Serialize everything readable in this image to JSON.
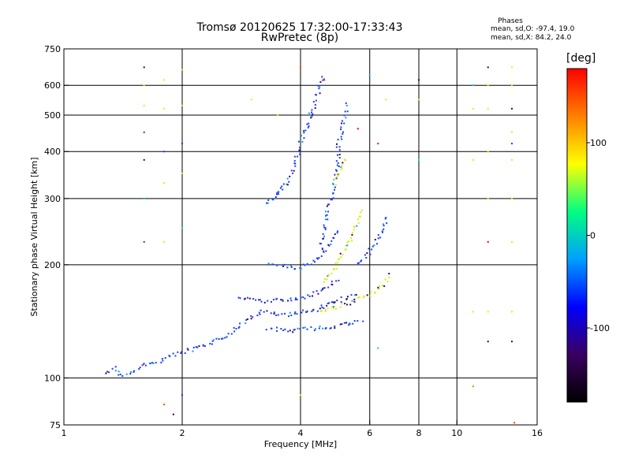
{
  "chart_data": {
    "type": "scatter",
    "title": "Tromsø 20120625 17:32:00-17:33:43",
    "subtitle": "RwPretec (8p)",
    "xlabel": "Frequency [MHz]",
    "ylabel": "Stationary phase Virtual Height [km]",
    "x_scale": "log",
    "y_scale": "log",
    "xlim": [
      1,
      16
    ],
    "ylim": [
      75,
      750
    ],
    "x_ticks": [
      "1",
      "2",
      "4",
      "6",
      "8",
      "10",
      "16"
    ],
    "x_tick_values": [
      1,
      2,
      4,
      6,
      8,
      10,
      16
    ],
    "y_ticks": [
      "75",
      "100",
      "200",
      "300",
      "400",
      "500",
      "600",
      "750"
    ],
    "y_tick_values": [
      75,
      100,
      200,
      300,
      400,
      500,
      600,
      750
    ],
    "grid": true,
    "legend": {
      "heading": "Phases",
      "o_stats": "mean, sd,O: -97.4, 19.0",
      "x_stats": "mean, sd,X:  84.2, 24.0"
    },
    "colorbar": {
      "label": "[deg]",
      "ticks": [
        "100",
        "0",
        "-100"
      ],
      "tick_values": [
        100,
        0,
        -100
      ],
      "range": [
        -180,
        180
      ],
      "colors": [
        "#000000",
        "#3a0060",
        "#0000ff",
        "#00a0ff",
        "#00ff80",
        "#ffff00",
        "#ff8000",
        "#ff0000"
      ]
    },
    "traces": [
      {
        "name": "",
        "phase": -100,
        "color": "#1a3cff",
        "points": [
          [
            1.28,
            103
          ],
          [
            1.35,
            106
          ],
          [
            1.42,
            101
          ],
          [
            1.5,
            104
          ],
          [
            1.6,
            108
          ],
          [
            1.7,
            110
          ],
          [
            1.8,
            112
          ],
          [
            1.9,
            115
          ],
          [
            2.0,
            117
          ],
          [
            2.2,
            120
          ],
          [
            2.4,
            124
          ],
          [
            2.6,
            130
          ],
          [
            2.8,
            138
          ],
          [
            3.0,
            145
          ],
          [
            3.2,
            150
          ],
          [
            3.4,
            148
          ],
          [
            3.6,
            147
          ],
          [
            3.8,
            148
          ],
          [
            4.0,
            150
          ],
          [
            4.2,
            150
          ],
          [
            4.4,
            152
          ],
          [
            4.6,
            155
          ],
          [
            4.8,
            158
          ],
          [
            5.0,
            160
          ],
          [
            5.3,
            165
          ],
          [
            5.6,
            168
          ]
        ]
      },
      {
        "name": "",
        "phase": -100,
        "color": "#1a3cff",
        "points": [
          [
            2.8,
            162
          ],
          [
            3.0,
            162
          ],
          [
            3.2,
            160
          ],
          [
            3.4,
            160
          ],
          [
            3.6,
            161
          ],
          [
            3.8,
            162
          ],
          [
            4.0,
            163
          ],
          [
            4.2,
            165
          ],
          [
            4.4,
            168
          ],
          [
            4.6,
            172
          ],
          [
            4.8,
            178
          ],
          [
            5.0,
            185
          ]
        ]
      },
      {
        "name": "",
        "phase": -100,
        "color": "#1a3cff",
        "points": [
          [
            3.3,
            135
          ],
          [
            3.6,
            134
          ],
          [
            3.9,
            134
          ],
          [
            4.2,
            135
          ],
          [
            4.6,
            136
          ],
          [
            5.0,
            138
          ],
          [
            5.4,
            140
          ],
          [
            5.8,
            142
          ]
        ]
      },
      {
        "name": "",
        "phase": -100,
        "color": "#1a3cff",
        "points": [
          [
            3.3,
            200
          ],
          [
            3.6,
            198
          ],
          [
            3.9,
            196
          ],
          [
            4.2,
            200
          ],
          [
            4.5,
            210
          ],
          [
            4.8,
            230
          ],
          [
            5.0,
            250
          ]
        ]
      },
      {
        "name": "",
        "phase": -100,
        "color": "#1a3cff",
        "points": [
          [
            3.3,
            290
          ],
          [
            3.4,
            300
          ],
          [
            3.5,
            310
          ],
          [
            3.6,
            320
          ],
          [
            3.7,
            330
          ],
          [
            3.8,
            350
          ],
          [
            3.9,
            380
          ],
          [
            4.0,
            420
          ],
          [
            4.1,
            450
          ],
          [
            4.2,
            480
          ],
          [
            4.3,
            520
          ],
          [
            4.4,
            560
          ],
          [
            4.5,
            600
          ],
          [
            4.6,
            640
          ]
        ]
      },
      {
        "name": "",
        "phase": -100,
        "color": "#1a3cff",
        "points": [
          [
            4.5,
            220
          ],
          [
            4.6,
            250
          ],
          [
            4.7,
            280
          ],
          [
            4.8,
            300
          ],
          [
            4.9,
            330
          ],
          [
            5.0,
            380
          ],
          [
            5.0,
            420
          ],
          [
            5.1,
            460
          ],
          [
            5.2,
            500
          ],
          [
            5.3,
            540
          ]
        ]
      },
      {
        "name": "",
        "phase": 100,
        "color": "#d8f000",
        "points": [
          [
            4.5,
            150
          ],
          [
            4.8,
            152
          ],
          [
            5.0,
            155
          ],
          [
            5.3,
            158
          ],
          [
            5.6,
            162
          ],
          [
            6.0,
            166
          ],
          [
            6.3,
            172
          ],
          [
            6.6,
            180
          ],
          [
            6.8,
            190
          ]
        ]
      },
      {
        "name": "",
        "phase": 100,
        "color": "#d8f000",
        "points": [
          [
            4.6,
            180
          ],
          [
            4.8,
            190
          ],
          [
            5.0,
            205
          ],
          [
            5.2,
            220
          ],
          [
            5.4,
            240
          ],
          [
            5.6,
            260
          ],
          [
            5.8,
            280
          ]
        ]
      },
      {
        "name": "",
        "phase": 100,
        "color": "#d8f000",
        "points": [
          [
            4.9,
            330
          ],
          [
            5.0,
            350
          ],
          [
            5.1,
            370
          ],
          [
            5.2,
            380
          ]
        ]
      },
      {
        "name": "",
        "phase": -100,
        "color": "#1a3cff",
        "points": [
          [
            5.6,
            200
          ],
          [
            5.9,
            210
          ],
          [
            6.2,
            230
          ],
          [
            6.5,
            250
          ],
          [
            6.7,
            270
          ]
        ]
      }
    ],
    "scattered": [
      {
        "x": 1.6,
        "y": 670,
        "color": "#3a0060"
      },
      {
        "x": 1.6,
        "y": 600,
        "color": "#ffe000"
      },
      {
        "x": 1.6,
        "y": 530,
        "color": "#ffe000"
      },
      {
        "x": 1.6,
        "y": 450,
        "color": "#1a3cff"
      },
      {
        "x": 1.6,
        "y": 380,
        "color": "#3a0060"
      },
      {
        "x": 1.6,
        "y": 300,
        "color": "#00c0ff"
      },
      {
        "x": 1.6,
        "y": 230,
        "color": "#1a3cff"
      },
      {
        "x": 1.8,
        "y": 620,
        "color": "#ffe000"
      },
      {
        "x": 1.8,
        "y": 520,
        "color": "#ffe000"
      },
      {
        "x": 1.8,
        "y": 400,
        "color": "#1a3cff"
      },
      {
        "x": 1.8,
        "y": 330,
        "color": "#ffe000"
      },
      {
        "x": 1.8,
        "y": 230,
        "color": "#ffe000"
      },
      {
        "x": 1.8,
        "y": 85,
        "color": "#ff4000"
      },
      {
        "x": 1.9,
        "y": 80,
        "color": "#3a0060"
      },
      {
        "x": 2.0,
        "y": 660,
        "color": "#ffe000"
      },
      {
        "x": 2.0,
        "y": 530,
        "color": "#ffe000"
      },
      {
        "x": 2.0,
        "y": 420,
        "color": "#1a3cff"
      },
      {
        "x": 2.0,
        "y": 350,
        "color": "#ffe000"
      },
      {
        "x": 2.0,
        "y": 250,
        "color": "#00ff80"
      },
      {
        "x": 2.0,
        "y": 90,
        "color": "#1a3cff"
      },
      {
        "x": 3.0,
        "y": 550,
        "color": "#ffe000"
      },
      {
        "x": 3.5,
        "y": 500,
        "color": "#ffe000"
      },
      {
        "x": 4.0,
        "y": 670,
        "color": "#ff4000"
      },
      {
        "x": 4.0,
        "y": 90,
        "color": "#ffe000"
      },
      {
        "x": 4.6,
        "y": 620,
        "color": "#ff4000"
      },
      {
        "x": 5.6,
        "y": 460,
        "color": "#ff0000"
      },
      {
        "x": 6.0,
        "y": 640,
        "color": "#00c0ff"
      },
      {
        "x": 6.3,
        "y": 420,
        "color": "#ff0000"
      },
      {
        "x": 6.3,
        "y": 120,
        "color": "#00c0ff"
      },
      {
        "x": 6.6,
        "y": 550,
        "color": "#ffe000"
      },
      {
        "x": 8.0,
        "y": 620,
        "color": "#3a0060"
      },
      {
        "x": 8.0,
        "y": 550,
        "color": "#ffe000"
      },
      {
        "x": 8.0,
        "y": 380,
        "color": "#00ff80"
      },
      {
        "x": 11.0,
        "y": 600,
        "color": "#00c0ff"
      },
      {
        "x": 11.0,
        "y": 520,
        "color": "#ffe000"
      },
      {
        "x": 11.0,
        "y": 380,
        "color": "#ffe000"
      },
      {
        "x": 11.0,
        "y": 150,
        "color": "#ffe000"
      },
      {
        "x": 11.0,
        "y": 95,
        "color": "#ff8000"
      },
      {
        "x": 12.0,
        "y": 670,
        "color": "#3a0060"
      },
      {
        "x": 12.0,
        "y": 600,
        "color": "#ffe000"
      },
      {
        "x": 12.0,
        "y": 520,
        "color": "#ffe000"
      },
      {
        "x": 12.0,
        "y": 400,
        "color": "#ffe000"
      },
      {
        "x": 12.0,
        "y": 300,
        "color": "#ffe000"
      },
      {
        "x": 12.0,
        "y": 230,
        "color": "#ff0000"
      },
      {
        "x": 12.0,
        "y": 150,
        "color": "#ffe000"
      },
      {
        "x": 12.0,
        "y": 125,
        "color": "#3a0060"
      },
      {
        "x": 13.8,
        "y": 670,
        "color": "#ffe000"
      },
      {
        "x": 13.8,
        "y": 600,
        "color": "#ffe000"
      },
      {
        "x": 13.8,
        "y": 520,
        "color": "#3a0060"
      },
      {
        "x": 13.8,
        "y": 450,
        "color": "#ffe000"
      },
      {
        "x": 13.8,
        "y": 420,
        "color": "#1a3cff"
      },
      {
        "x": 13.8,
        "y": 380,
        "color": "#ffe000"
      },
      {
        "x": 13.8,
        "y": 300,
        "color": "#ffe000"
      },
      {
        "x": 13.8,
        "y": 230,
        "color": "#ffe000"
      },
      {
        "x": 13.8,
        "y": 150,
        "color": "#ffe000"
      },
      {
        "x": 13.8,
        "y": 125,
        "color": "#3a0060"
      },
      {
        "x": 14.0,
        "y": 76,
        "color": "#ff4000"
      }
    ]
  }
}
